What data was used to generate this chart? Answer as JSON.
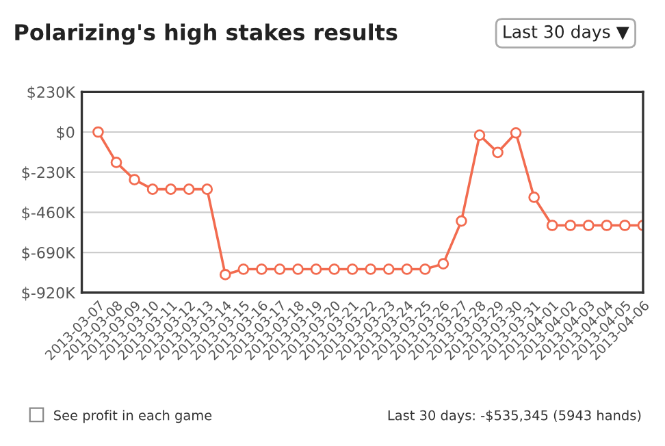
{
  "chart_data": {
    "type": "line",
    "title": "Polarizing's high stakes results",
    "categories": [
      "2013-03-07",
      "2013-03-08",
      "2013-03-09",
      "2013-03-10",
      "2013-03-11",
      "2013-03-12",
      "2013-03-13",
      "2013-03-14",
      "2013-03-15",
      "2013-03-16",
      "2013-03-17",
      "2013-03-18",
      "2013-03-19",
      "2013-03-20",
      "2013-03-21",
      "2013-03-22",
      "2013-03-23",
      "2013-03-24",
      "2013-03-25",
      "2013-03-26",
      "2013-03-27",
      "2013-03-28",
      "2013-03-29",
      "2013-03-30",
      "2013-03-31",
      "2013-04-01",
      "2013-04-02",
      "2013-04-03",
      "2013-04-04",
      "2013-04-05",
      "2013-04-06"
    ],
    "series": [
      {
        "color": "#f26b4f",
        "values": [
          0,
          -174,
          -273,
          -328,
          -328,
          -328,
          -328,
          -817,
          -786,
          -786,
          -786,
          -786,
          -786,
          -786,
          -786,
          -786,
          -786,
          -786,
          -786,
          -755,
          -510,
          -18,
          -117,
          -5,
          -374,
          -535,
          -535,
          -535,
          -535,
          -535,
          -535
        ]
      }
    ],
    "ylim": [
      -920,
      230
    ],
    "yticks": [
      {
        "value": -920,
        "label": "$-920K"
      },
      {
        "value": -690,
        "label": "$-690K"
      },
      {
        "value": -460,
        "label": "$-460K"
      },
      {
        "value": -230,
        "label": "$-230K"
      },
      {
        "value": 0,
        "label": "$0"
      },
      {
        "value": 230,
        "label": "$230K"
      }
    ],
    "grid": "y",
    "marker": "circle",
    "line_style": "solid",
    "legend": false,
    "annotations": [
      "Last 30 days ▼",
      "See profit in each game",
      "Last 30 days: -$535,345 (5943 hands)"
    ]
  }
}
